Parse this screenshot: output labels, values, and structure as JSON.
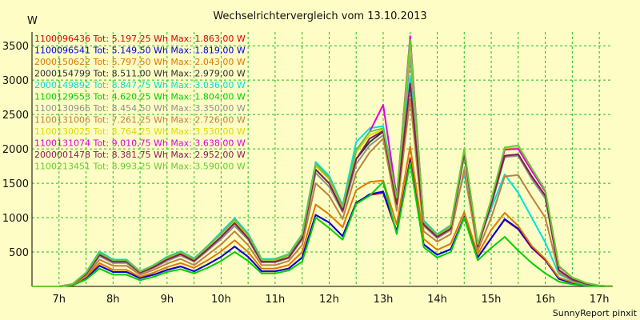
{
  "chart_data": {
    "type": "line",
    "title": "Wechselrichtervergleich vom 13.10.2013",
    "ylabel": "W",
    "footer": "SunnyReport pinxit",
    "ylim": [
      0,
      3700
    ],
    "xlim": [
      6.5,
      17.25
    ],
    "x_ticks": [
      {
        "value": 7,
        "label": "7h"
      },
      {
        "value": 8,
        "label": "8h"
      },
      {
        "value": 9,
        "label": "9h"
      },
      {
        "value": 10,
        "label": "10h"
      },
      {
        "value": 11,
        "label": "11h"
      },
      {
        "value": 12,
        "label": "12h"
      },
      {
        "value": 13,
        "label": "13h"
      },
      {
        "value": 14,
        "label": "14h"
      },
      {
        "value": 15,
        "label": "15h"
      },
      {
        "value": 16,
        "label": "16h"
      },
      {
        "value": 17,
        "label": "17h"
      }
    ],
    "y_ticks": [
      500,
      1000,
      1500,
      2000,
      2500,
      3000,
      3500
    ],
    "grid": true,
    "legend_position": "top-left inside plot",
    "x": [
      6.5,
      6.75,
      7.0,
      7.25,
      7.5,
      7.75,
      8.0,
      8.25,
      8.5,
      8.75,
      9.0,
      9.25,
      9.5,
      9.75,
      10.0,
      10.25,
      10.5,
      10.75,
      11.0,
      11.25,
      11.5,
      11.75,
      12.0,
      12.25,
      12.5,
      12.75,
      13.0,
      13.25,
      13.5,
      13.75,
      14.0,
      14.25,
      14.5,
      14.75,
      15.0,
      15.25,
      15.5,
      15.75,
      16.0,
      16.25,
      16.5,
      16.75,
      17.0,
      17.25
    ],
    "series": [
      {
        "legend": "1100096436 Tot: 5.197,25 Wh Max: 1.863,00 W",
        "color": "#e00000",
        "values": [
          0,
          0,
          0,
          20,
          120,
          300,
          210,
          210,
          120,
          170,
          240,
          290,
          220,
          320,
          430,
          580,
          430,
          220,
          220,
          260,
          420,
          1040,
          930,
          730,
          1220,
          1330,
          1360,
          790,
          1860,
          610,
          460,
          540,
          1000,
          420,
          700,
          970,
          830,
          560,
          380,
          110,
          50,
          20,
          5,
          0
        ]
      },
      {
        "legend": "1100096541 Tot: 5.149,50 Wh Max: 1.819,00 W",
        "color": "#0000e0",
        "values": [
          0,
          0,
          0,
          20,
          120,
          300,
          210,
          210,
          120,
          170,
          240,
          290,
          220,
          320,
          430,
          580,
          430,
          220,
          220,
          260,
          420,
          1040,
          930,
          730,
          1210,
          1340,
          1380,
          800,
          1820,
          610,
          460,
          540,
          1010,
          420,
          700,
          980,
          840,
          570,
          390,
          110,
          50,
          20,
          5,
          0
        ]
      },
      {
        "legend": "2000150622 Tot: 5.797,50 Wh Max: 2.043,00 W",
        "color": "#e07800",
        "values": [
          0,
          0,
          0,
          25,
          140,
          340,
          240,
          240,
          140,
          200,
          280,
          340,
          270,
          380,
          510,
          670,
          500,
          260,
          260,
          310,
          500,
          1190,
          1050,
          860,
          1400,
          1520,
          1540,
          900,
          2040,
          690,
          530,
          620,
          1080,
          470,
          820,
          1070,
          880,
          590,
          400,
          130,
          60,
          25,
          8,
          0
        ]
      },
      {
        "legend": "2000154799 Tot: 8.511,00 Wh Max: 2.979,00 W",
        "color": "#303030",
        "values": [
          0,
          0,
          0,
          30,
          180,
          460,
          360,
          360,
          200,
          280,
          390,
          470,
          370,
          540,
          720,
          920,
          700,
          360,
          360,
          420,
          700,
          1700,
          1500,
          1100,
          1850,
          2100,
          2250,
          1200,
          2980,
          900,
          720,
          840,
          1950,
          580,
          1200,
          1900,
          1920,
          1600,
          1320,
          240,
          100,
          40,
          10,
          0
        ]
      },
      {
        "legend": "2000149892 Tot: 8.847,75 Wh Max: 3.036,00 W",
        "color": "#00e0e0",
        "values": [
          0,
          0,
          0,
          35,
          200,
          510,
          390,
          390,
          220,
          310,
          430,
          510,
          410,
          590,
          790,
          990,
          770,
          400,
          400,
          470,
          760,
          1810,
          1610,
          1180,
          2100,
          2300,
          2330,
          1330,
          3040,
          960,
          760,
          890,
          1640,
          620,
          1130,
          1630,
          1360,
          1000,
          640,
          180,
          80,
          30,
          10,
          0
        ]
      },
      {
        "legend": "1100129553 Tot: 4.620,25 Wh Max: 1.804,00 W",
        "color": "#00d000",
        "values": [
          0,
          0,
          0,
          15,
          100,
          260,
          170,
          170,
          90,
          140,
          210,
          250,
          190,
          270,
          370,
          500,
          370,
          190,
          190,
          230,
          360,
          1000,
          850,
          680,
          1200,
          1320,
          1520,
          760,
          1800,
          570,
          420,
          500,
          1000,
          380,
          560,
          720,
          520,
          340,
          190,
          70,
          30,
          10,
          3,
          0
        ]
      },
      {
        "legend": "1100130966 Tot: 8.454,50 Wh Max: 3.350,00 W",
        "color": "#909090",
        "values": [
          0,
          0,
          0,
          28,
          170,
          440,
          340,
          340,
          190,
          270,
          370,
          450,
          360,
          520,
          690,
          880,
          680,
          350,
          350,
          410,
          680,
          1650,
          1450,
          1080,
          1780,
          2050,
          2200,
          1180,
          3350,
          880,
          700,
          820,
          1900,
          570,
          1170,
          1880,
          1900,
          1560,
          1280,
          230,
          100,
          40,
          10,
          0
        ]
      },
      {
        "legend": "1100131006 Tot: 7.261,25 Wh Max: 2.726,00 W",
        "color": "#c08040",
        "values": [
          0,
          0,
          0,
          25,
          150,
          390,
          300,
          300,
          170,
          240,
          330,
          400,
          310,
          460,
          610,
          800,
          600,
          310,
          310,
          370,
          600,
          1500,
          1320,
          980,
          1650,
          1950,
          2150,
          1100,
          2730,
          800,
          650,
          760,
          1700,
          520,
          1000,
          1600,
          1620,
          1300,
          1000,
          200,
          90,
          35,
          10,
          0
        ]
      },
      {
        "legend": "1100130025 Tot: 8.764,25 Wh Max: 3.530,00 W",
        "color": "#e0d800",
        "values": [
          0,
          0,
          0,
          32,
          190,
          480,
          370,
          370,
          210,
          300,
          410,
          490,
          390,
          570,
          760,
          950,
          740,
          380,
          380,
          450,
          740,
          1750,
          1560,
          1150,
          1950,
          2200,
          2280,
          1280,
          3530,
          930,
          740,
          870,
          2000,
          600,
          1250,
          2000,
          2020,
          1700,
          1400,
          300,
          130,
          50,
          12,
          0
        ]
      },
      {
        "legend": "1100131074 Tot: 9.010,75 Wh Max: 3.638,00 W",
        "color": "#e000e0",
        "values": [
          0,
          0,
          0,
          33,
          195,
          490,
          380,
          380,
          215,
          305,
          420,
          500,
          400,
          580,
          770,
          970,
          750,
          390,
          390,
          460,
          750,
          1780,
          1580,
          1160,
          1980,
          2250,
          2640,
          1300,
          3640,
          940,
          750,
          880,
          1980,
          610,
          1260,
          1990,
          2000,
          1680,
          1380,
          290,
          130,
          50,
          12,
          0
        ]
      },
      {
        "legend": "2000001478 Tot: 8.381,75 Wh Max: 2.952,00 W",
        "color": "#802050",
        "values": [
          0,
          0,
          0,
          30,
          180,
          460,
          360,
          360,
          200,
          280,
          390,
          470,
          370,
          540,
          720,
          920,
          700,
          360,
          360,
          420,
          700,
          1700,
          1500,
          1100,
          1850,
          2150,
          2260,
          1200,
          2950,
          900,
          720,
          840,
          1950,
          580,
          1200,
          1900,
          1920,
          1600,
          1320,
          240,
          100,
          40,
          10,
          0
        ]
      },
      {
        "legend": "1100213451 Tot: 8.993,25 Wh Max: 3.590,00 W",
        "color": "#66cc33",
        "values": [
          0,
          0,
          0,
          33,
          195,
          490,
          380,
          380,
          215,
          305,
          420,
          500,
          400,
          580,
          770,
          970,
          750,
          390,
          390,
          460,
          750,
          1780,
          1580,
          1160,
          1980,
          2250,
          2300,
          1290,
          3590,
          940,
          750,
          880,
          2000,
          610,
          1260,
          2020,
          2050,
          1720,
          1400,
          300,
          130,
          50,
          12,
          0
        ]
      }
    ]
  }
}
